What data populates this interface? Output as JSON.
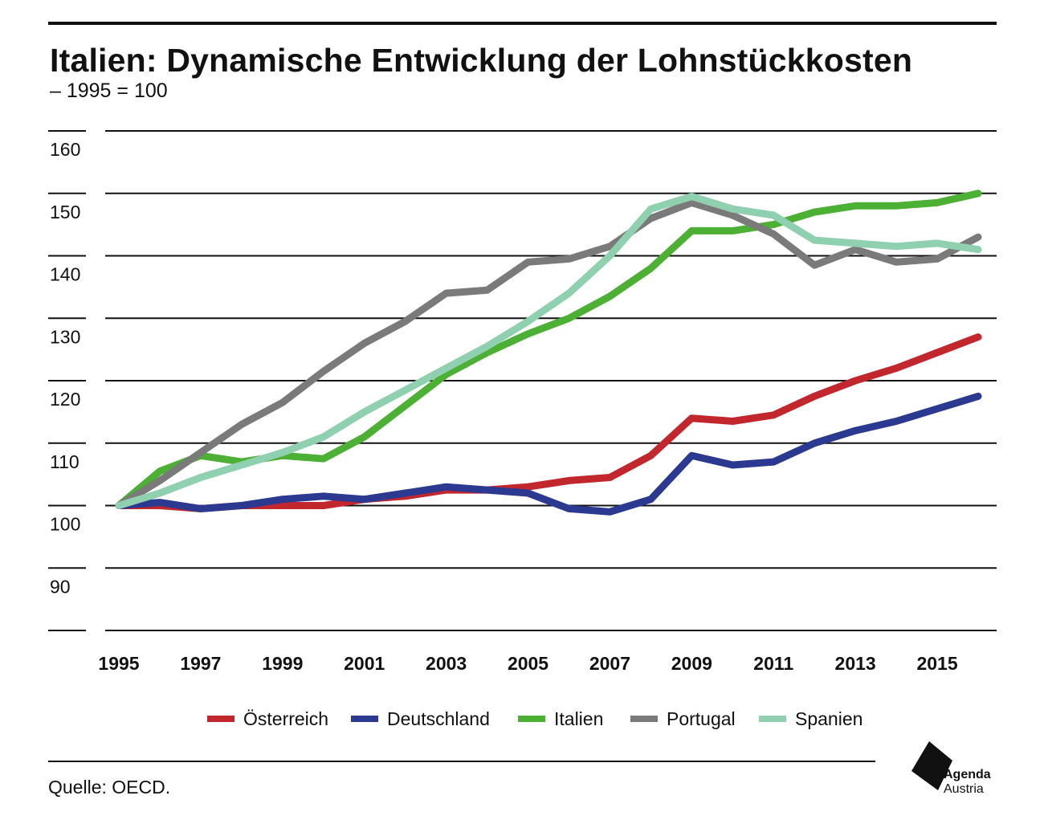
{
  "header": {
    "title": "Italien: Dynamische Entwicklung der Lohnstückkosten",
    "subtitle": "– 1995 = 100"
  },
  "footer": {
    "source": "Quelle: OECD.",
    "logo_line1": "Agenda",
    "logo_line2": "Austria"
  },
  "chart_data": {
    "type": "line",
    "title": "Italien: Dynamische Entwicklung der Lohnstückkosten",
    "subtitle": "– 1995 = 100",
    "x": [
      1995,
      1996,
      1997,
      1998,
      1999,
      2000,
      2001,
      2002,
      2003,
      2004,
      2005,
      2006,
      2007,
      2008,
      2009,
      2010,
      2011,
      2012,
      2013,
      2014,
      2015,
      2016
    ],
    "x_tick_labels": [
      "1995",
      "1997",
      "1999",
      "2001",
      "2003",
      "2005",
      "2007",
      "2009",
      "2011",
      "2013",
      "2015"
    ],
    "y_tick_labels": [
      "160",
      "150",
      "140",
      "130",
      "120",
      "110",
      "100",
      "90"
    ],
    "ylim": [
      80,
      160
    ],
    "grid": true,
    "legend_position": "bottom",
    "series": [
      {
        "name": "Österreich",
        "color": "#c1272d",
        "values": [
          100,
          100,
          99.5,
          100,
          100,
          100,
          101,
          101.5,
          102.5,
          102.5,
          103,
          104,
          104.5,
          108,
          114,
          113.5,
          114.5,
          117.5,
          120,
          122,
          124.5,
          127
        ]
      },
      {
        "name": "Deutschland",
        "color": "#2b3990",
        "values": [
          100,
          100.5,
          99.5,
          100,
          101,
          101.5,
          101,
          102,
          103,
          102.5,
          102,
          99.5,
          99,
          101,
          108,
          106.5,
          107,
          110,
          112,
          113.5,
          115.5,
          117.5
        ]
      },
      {
        "name": "Italien",
        "color": "#4cb034",
        "values": [
          100,
          105.5,
          108,
          107,
          108,
          107.5,
          111,
          116,
          121,
          124.5,
          127.5,
          130,
          133.5,
          138,
          144,
          144,
          145,
          147,
          148,
          148,
          148.5,
          150
        ]
      },
      {
        "name": "Portugal",
        "color": "#7a7a7a",
        "values": [
          100,
          104,
          108.5,
          113,
          116.5,
          121.5,
          126,
          129.5,
          134,
          134.5,
          139,
          139.5,
          141.5,
          146,
          148.5,
          146.5,
          143.5,
          138.5,
          141,
          139,
          139.5,
          143
        ]
      },
      {
        "name": "Spanien",
        "color": "#8fd0b0",
        "values": [
          100,
          102,
          104.5,
          106.5,
          108.5,
          111,
          115,
          118.5,
          122,
          125.5,
          129.5,
          134,
          140,
          147.5,
          149.5,
          147.5,
          146.5,
          142.5,
          142,
          141.5,
          142,
          141
        ]
      }
    ]
  }
}
